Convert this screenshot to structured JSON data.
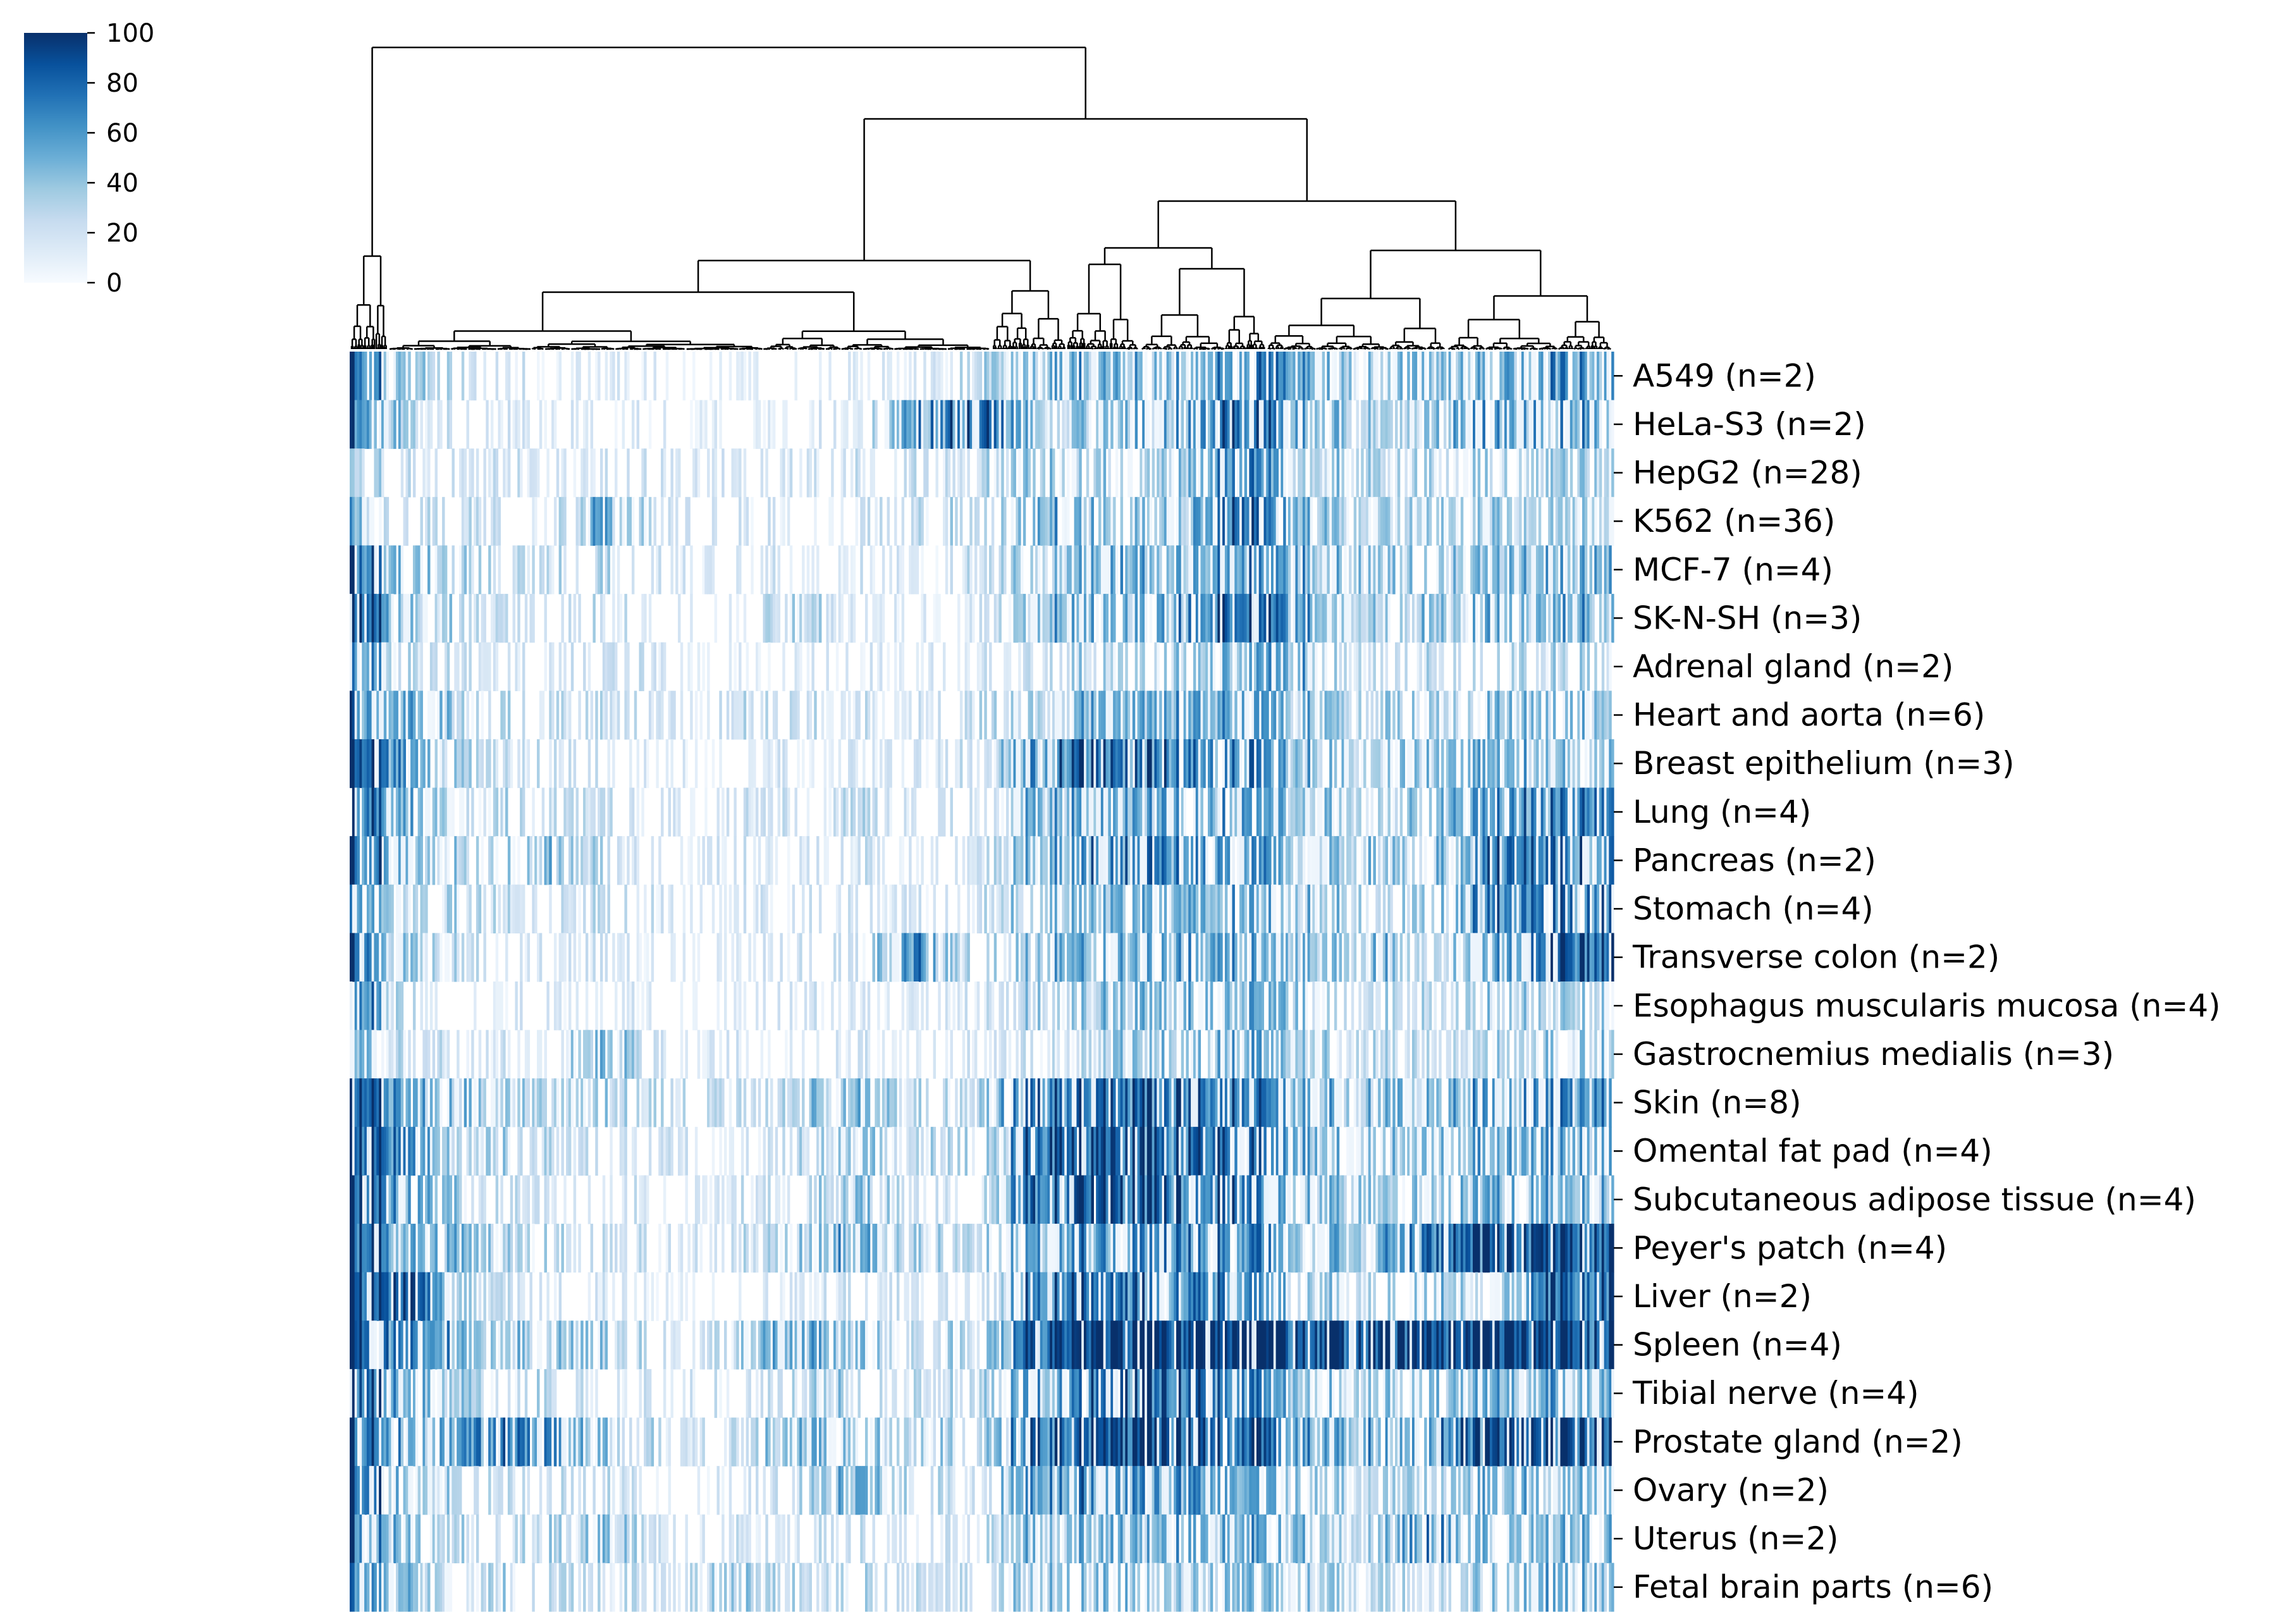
{
  "chart_data": {
    "type": "heatmap",
    "title": "",
    "xlabel": "",
    "ylabel": "",
    "column_count": 520,
    "column_dendrogram": true,
    "row_labels": [
      "A549 (n=2)",
      "HeLa-S3 (n=2)",
      "HepG2 (n=28)",
      "K562 (n=36)",
      "MCF-7 (n=4)",
      "SK-N-SH (n=3)",
      "Adrenal gland (n=2)",
      "Heart and aorta (n=6)",
      "Breast epithelium (n=3)",
      "Lung (n=4)",
      "Pancreas (n=2)",
      "Stomach (n=4)",
      "Transverse colon (n=2)",
      "Esophagus muscularis mucosa (n=4)",
      "Gastrocnemius medialis (n=3)",
      "Skin (n=8)",
      "Omental fat pad (n=4)",
      "Subcutaneous adipose tissue (n=4)",
      "Peyer's patch (n=4)",
      "Liver (n=2)",
      "Spleen (n=4)",
      "Tibial nerve (n=4)",
      "Prostate gland (n=2)",
      "Ovary (n=2)",
      "Uterus (n=2)",
      "Fetal brain parts (n=6)"
    ],
    "colorbar": {
      "min": 0,
      "max": 100,
      "ticks": [
        "0",
        "20",
        "40",
        "60",
        "80",
        "100"
      ],
      "colormap": "Blues",
      "low_color": "#f7fbff",
      "mid_color": "#6baed6",
      "high_color": "#08306b"
    },
    "column_block_profiles_note": "approximate mean intensity (0-100) per row across 20 equal column blocks",
    "row_profiles": [
      [
        80,
        30,
        15,
        8,
        8,
        5,
        3,
        8,
        8,
        3,
        20,
        40,
        45,
        40,
        60,
        55,
        30,
        40,
        35,
        55
      ],
      [
        70,
        20,
        10,
        10,
        8,
        3,
        3,
        8,
        10,
        55,
        70,
        30,
        40,
        40,
        75,
        45,
        30,
        35,
        45,
        50
      ],
      [
        25,
        15,
        12,
        12,
        10,
        10,
        10,
        10,
        12,
        15,
        20,
        35,
        30,
        25,
        60,
        35,
        25,
        25,
        30,
        25
      ],
      [
        40,
        15,
        20,
        10,
        45,
        10,
        10,
        10,
        10,
        15,
        20,
        50,
        35,
        30,
        70,
        40,
        30,
        25,
        30,
        30
      ],
      [
        75,
        35,
        25,
        15,
        20,
        10,
        5,
        10,
        10,
        10,
        15,
        35,
        45,
        40,
        55,
        45,
        30,
        30,
        35,
        45
      ],
      [
        85,
        30,
        20,
        10,
        15,
        5,
        5,
        25,
        10,
        5,
        10,
        40,
        45,
        45,
        75,
        50,
        30,
        30,
        35,
        45
      ],
      [
        60,
        15,
        10,
        10,
        20,
        5,
        3,
        5,
        8,
        3,
        8,
        20,
        25,
        30,
        40,
        45,
        15,
        20,
        20,
        25
      ],
      [
        70,
        40,
        25,
        20,
        15,
        10,
        15,
        15,
        15,
        10,
        20,
        35,
        40,
        45,
        50,
        40,
        25,
        30,
        30,
        35
      ],
      [
        90,
        40,
        20,
        15,
        10,
        5,
        5,
        10,
        10,
        5,
        15,
        75,
        70,
        65,
        60,
        40,
        25,
        35,
        35,
        35
      ],
      [
        80,
        40,
        25,
        20,
        15,
        10,
        10,
        15,
        20,
        10,
        15,
        45,
        45,
        45,
        50,
        40,
        30,
        30,
        50,
        60
      ],
      [
        85,
        35,
        20,
        40,
        15,
        8,
        8,
        12,
        12,
        8,
        15,
        50,
        60,
        60,
        55,
        40,
        30,
        30,
        55,
        65
      ],
      [
        55,
        30,
        20,
        15,
        15,
        8,
        8,
        10,
        10,
        8,
        15,
        35,
        40,
        40,
        40,
        35,
        25,
        30,
        55,
        65
      ],
      [
        80,
        35,
        15,
        10,
        10,
        5,
        5,
        10,
        20,
        55,
        15,
        40,
        45,
        45,
        50,
        40,
        45,
        25,
        40,
        75
      ],
      [
        70,
        20,
        10,
        8,
        8,
        5,
        5,
        8,
        8,
        5,
        10,
        30,
        35,
        45,
        45,
        30,
        20,
        20,
        25,
        30
      ],
      [
        55,
        20,
        10,
        10,
        35,
        8,
        8,
        8,
        10,
        5,
        10,
        25,
        30,
        35,
        40,
        35,
        20,
        20,
        25,
        30
      ],
      [
        90,
        45,
        35,
        30,
        25,
        15,
        20,
        25,
        35,
        20,
        25,
        75,
        70,
        70,
        65,
        45,
        35,
        35,
        50,
        55
      ],
      [
        95,
        50,
        25,
        20,
        15,
        10,
        10,
        20,
        35,
        20,
        20,
        85,
        80,
        75,
        65,
        45,
        30,
        35,
        40,
        45
      ],
      [
        90,
        45,
        20,
        15,
        15,
        10,
        10,
        15,
        30,
        15,
        15,
        85,
        80,
        75,
        60,
        40,
        30,
        35,
        40,
        40
      ],
      [
        85,
        45,
        30,
        20,
        15,
        10,
        15,
        25,
        45,
        25,
        25,
        55,
        55,
        55,
        55,
        45,
        35,
        60,
        75,
        85
      ],
      [
        90,
        70,
        20,
        10,
        8,
        5,
        5,
        10,
        15,
        10,
        10,
        75,
        65,
        60,
        60,
        35,
        25,
        35,
        25,
        70
      ],
      [
        100,
        55,
        40,
        30,
        25,
        15,
        25,
        45,
        30,
        20,
        25,
        95,
        95,
        95,
        95,
        90,
        90,
        90,
        90,
        90
      ],
      [
        85,
        40,
        25,
        20,
        15,
        10,
        10,
        20,
        25,
        15,
        20,
        60,
        70,
        70,
        60,
        40,
        30,
        35,
        40,
        45
      ],
      [
        90,
        40,
        60,
        65,
        30,
        15,
        15,
        35,
        35,
        25,
        25,
        80,
        85,
        80,
        70,
        55,
        45,
        55,
        75,
        80
      ],
      [
        90,
        35,
        20,
        15,
        15,
        8,
        8,
        15,
        45,
        15,
        15,
        60,
        55,
        55,
        45,
        35,
        25,
        30,
        35,
        40
      ],
      [
        65,
        30,
        20,
        20,
        35,
        10,
        10,
        15,
        15,
        10,
        15,
        45,
        45,
        40,
        45,
        40,
        25,
        55,
        35,
        40
      ],
      [
        60,
        35,
        25,
        20,
        15,
        15,
        30,
        20,
        20,
        15,
        15,
        40,
        35,
        35,
        35,
        30,
        25,
        25,
        30,
        40
      ]
    ]
  }
}
